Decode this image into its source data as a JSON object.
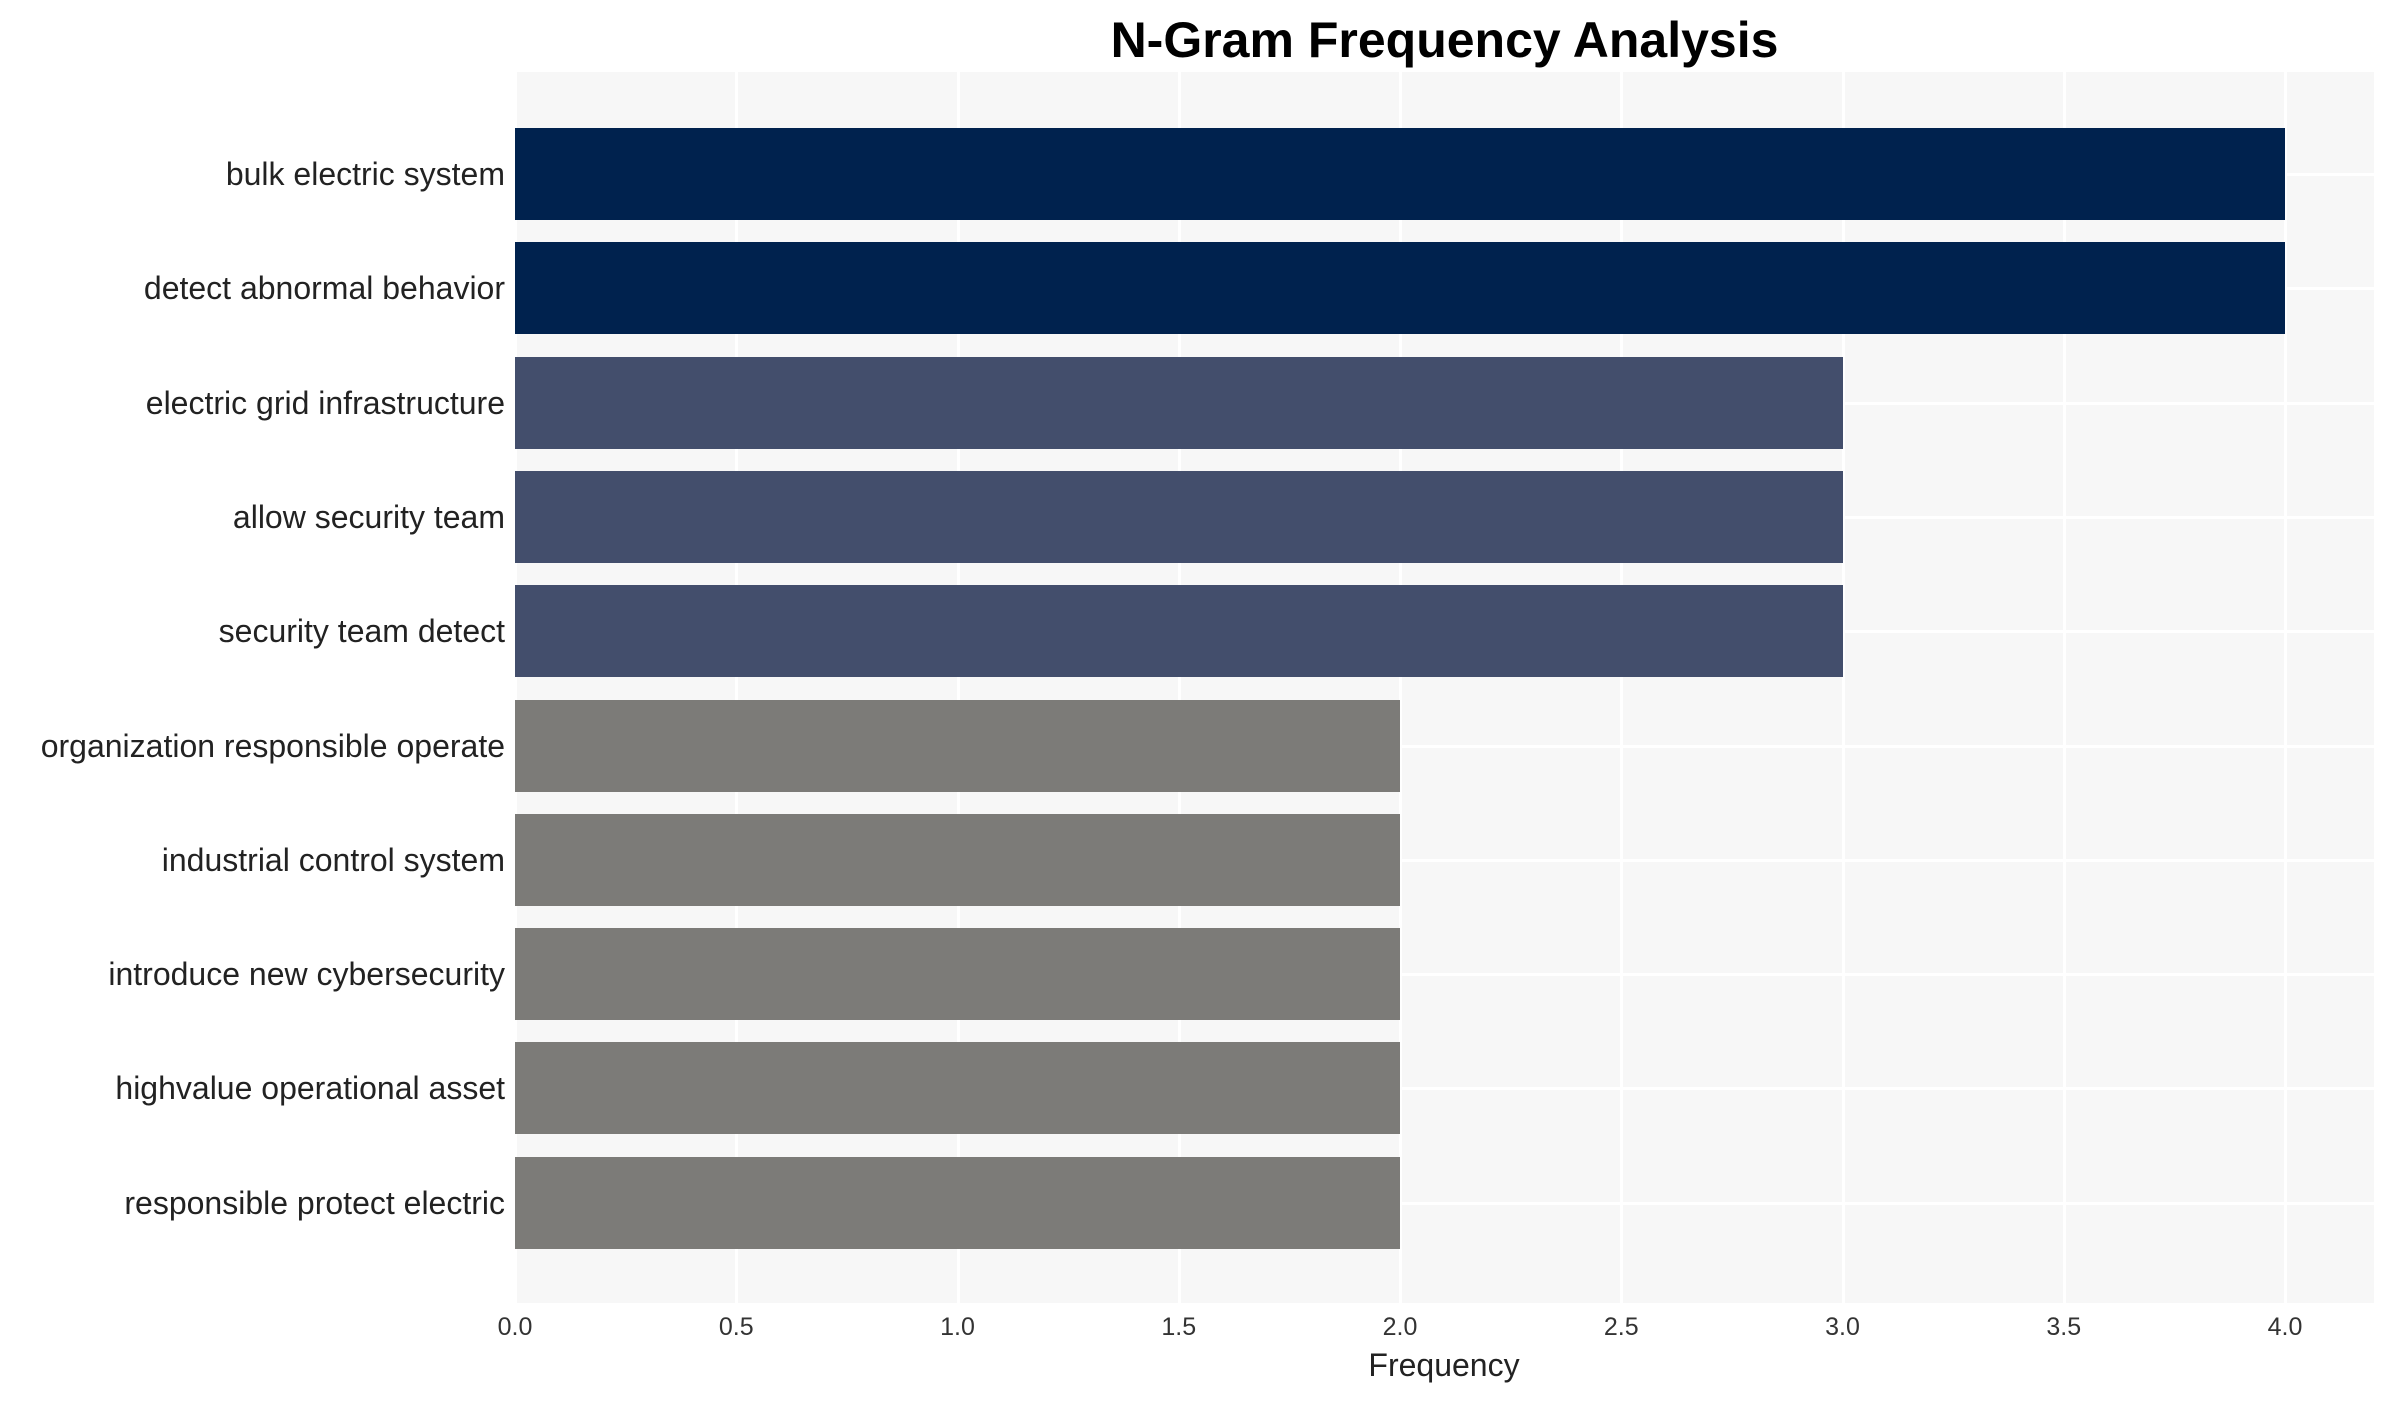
{
  "chart_data": {
    "type": "bar",
    "orientation": "horizontal",
    "title": "N-Gram Frequency Analysis",
    "xlabel": "Frequency",
    "ylabel": "",
    "xlim": [
      0,
      4.2
    ],
    "x_ticks": [
      "0.0",
      "0.5",
      "1.0",
      "1.5",
      "2.0",
      "2.5",
      "3.0",
      "3.5",
      "4.0"
    ],
    "grid": true,
    "legend": null,
    "categories": [
      "bulk electric system",
      "detect abnormal behavior",
      "electric grid infrastructure",
      "allow security team",
      "security team detect",
      "organization responsible operate",
      "industrial control system",
      "introduce new cybersecurity",
      "highvalue operational asset",
      "responsible protect electric"
    ],
    "values": [
      4,
      4,
      3,
      3,
      3,
      2,
      2,
      2,
      2,
      2
    ],
    "colors": [
      "#00224E",
      "#00224E",
      "#434E6C",
      "#434E6C",
      "#434E6C",
      "#7C7B78",
      "#7C7B78",
      "#7C7B78",
      "#7C7B78",
      "#7C7B78"
    ]
  },
  "style": {
    "panel_background": "#F7F7F7",
    "gridline_color": "#FFFFFF"
  }
}
